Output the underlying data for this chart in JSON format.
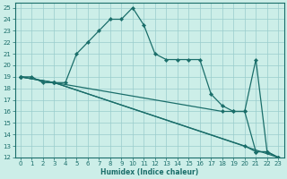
{
  "xlabel": "Humidex (Indice chaleur)",
  "background_color": "#cceee8",
  "grid_color": "#99cccc",
  "line_color": "#1a6e6a",
  "xlim": [
    -0.5,
    23.5
  ],
  "ylim": [
    12,
    25.4
  ],
  "xticks": [
    0,
    1,
    2,
    3,
    4,
    5,
    6,
    7,
    8,
    9,
    10,
    11,
    12,
    13,
    14,
    15,
    16,
    17,
    18,
    19,
    20,
    21,
    22,
    23
  ],
  "yticks": [
    12,
    13,
    14,
    15,
    16,
    17,
    18,
    19,
    20,
    21,
    22,
    23,
    24,
    25
  ],
  "series": [
    {
      "x": [
        0,
        1,
        2,
        3,
        4,
        5,
        6,
        7,
        8,
        9,
        10,
        11,
        12,
        13,
        14,
        15,
        16,
        17,
        18,
        19,
        20,
        21,
        22,
        23
      ],
      "y": [
        19,
        19,
        18.5,
        18.5,
        18.5,
        21,
        22,
        23,
        24,
        24,
        25,
        23.5,
        21,
        20.5,
        20.5,
        20.5,
        20.5,
        17.5,
        16.5,
        16,
        16,
        20.5,
        12.5,
        12
      ]
    },
    {
      "x": [
        0,
        3,
        23
      ],
      "y": [
        19,
        18.5,
        12
      ]
    },
    {
      "x": [
        0,
        3,
        20,
        21,
        22,
        23
      ],
      "y": [
        19,
        18.5,
        13,
        12.5,
        12.5,
        12
      ]
    },
    {
      "x": [
        0,
        3,
        18,
        19,
        20,
        21,
        22,
        23
      ],
      "y": [
        19,
        18.5,
        16,
        16,
        16,
        12.5,
        12.5,
        12
      ]
    }
  ]
}
